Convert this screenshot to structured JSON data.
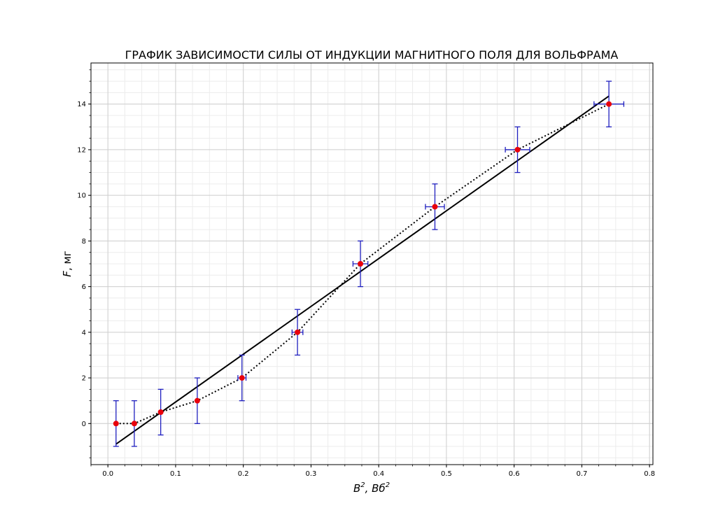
{
  "chart_data": {
    "type": "scatter",
    "title": "ГРАФИК ЗАВИСИМОСТИ СИЛЫ ОТ ИНДУКЦИИ МАГНИТНОГО ПОЛЯ ДЛЯ ВОЛЬФРАМА",
    "xlabel": {
      "main": "B",
      "sup1": "2",
      "mid": ", Вб",
      "sup2": "2"
    },
    "ylabel": {
      "var": "F",
      "unit": ", мг"
    },
    "xlim": [
      -0.025,
      0.805
    ],
    "ylim": [
      -1.8,
      15.8
    ],
    "x_ticks": [
      0.0,
      0.1,
      0.2,
      0.3,
      0.4,
      0.5,
      0.6,
      0.7,
      0.8
    ],
    "x_tick_labels": [
      "0.0",
      "0.1",
      "0.2",
      "0.3",
      "0.4",
      "0.5",
      "0.6",
      "0.7",
      "0.8"
    ],
    "y_ticks": [
      0,
      2,
      4,
      6,
      8,
      10,
      12,
      14
    ],
    "y_tick_labels": [
      "0",
      "2",
      "4",
      "6",
      "8",
      "10",
      "12",
      "14"
    ],
    "x_minor_step": 0.025,
    "y_minor_step": 0.5,
    "grid": true,
    "points": {
      "x": [
        0.012,
        0.039,
        0.078,
        0.132,
        0.198,
        0.28,
        0.373,
        0.483,
        0.605,
        0.74
      ],
      "y": [
        0,
        0,
        0.5,
        1,
        2,
        4,
        7,
        9.5,
        12,
        14
      ],
      "xerr": [
        0.0,
        0.0,
        0.0,
        0.0,
        0.006,
        0.008,
        0.011,
        0.014,
        0.018,
        0.022
      ],
      "yerr": [
        1,
        1,
        1,
        1,
        1,
        1,
        1,
        1,
        1,
        1
      ],
      "marker_color": "#e8000b",
      "errorbar_color": "#1f1fbf",
      "connect_style": "dotted"
    },
    "fit_line": {
      "x": [
        0.012,
        0.74
      ],
      "y": [
        -0.9,
        14.35
      ],
      "color": "#000000"
    }
  }
}
